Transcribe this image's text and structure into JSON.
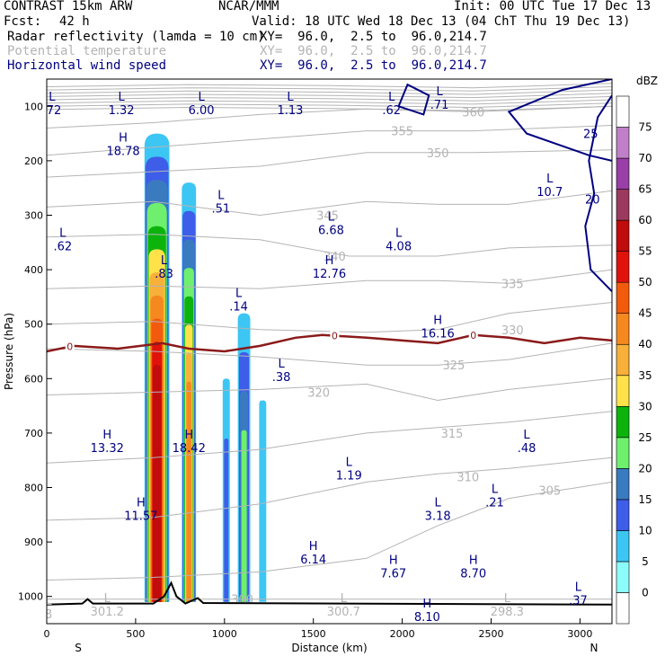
{
  "header": {
    "model": "CONTRAST 15km ARW",
    "org": "NCAR/MMM",
    "init": "Init: 00 UTC Tue 17 Dec 13",
    "fcst_label": "Fcst:",
    "fcst_value": "42 h",
    "valid": "Valid: 18 UTC Wed 18 Dec 13 (04 ChT Thu 19 Dec 13)",
    "fields": [
      {
        "name": "Radar reflectivity (lamda = 10 cm)",
        "xy": "XY=  96.0,  2.5 to  96.0,214.7",
        "color": "#000000"
      },
      {
        "name": "Potential temperature",
        "xy": "XY=  96.0,  2.5 to  96.0,214.7",
        "color": "#b4b4b4"
      },
      {
        "name": "Horizontal wind speed",
        "xy": "XY=  96.0,  2.5 to  96.0,214.7",
        "color": "#000080"
      }
    ]
  },
  "chart_data": {
    "type": "contour-cross-section",
    "xlabel": "Distance (km)",
    "ylabel": "Pressure (hPa)",
    "xlim": [
      0,
      3180
    ],
    "ylim": [
      1050,
      50
    ],
    "x_ticks": [
      0,
      500,
      1000,
      1500,
      2000,
      2500,
      3000
    ],
    "y_ticks": [
      100,
      200,
      300,
      400,
      500,
      600,
      700,
      800,
      900,
      1000
    ],
    "x_end_labels": {
      "left": "S",
      "right": "N"
    },
    "colorbar": {
      "unit": "dBZ",
      "levels": [
        0,
        5,
        10,
        15,
        20,
        25,
        30,
        35,
        40,
        45,
        50,
        55,
        60,
        65,
        70,
        75
      ],
      "colors": [
        "#ffffff",
        "#8efbfb",
        "#3cc6f4",
        "#3e5de8",
        "#3a7bbf",
        "#6ef06e",
        "#0cb30c",
        "#ffe24a",
        "#f7b03a",
        "#f5891f",
        "#f25a0c",
        "#e0120c",
        "#c00c0c",
        "#9a3a5c",
        "#9a3ea8",
        "#c080c8",
        "#ffffff"
      ]
    },
    "theta_contours": {
      "color": "#b4b4b4",
      "lines": [
        {
          "value": 300,
          "points": [
            [
              0,
              1005
            ],
            [
              3180,
              1005
            ]
          ],
          "label_at": [
            1100,
            1005
          ]
        },
        {
          "value": 305,
          "points": [
            [
              0,
              970
            ],
            [
              600,
              965
            ],
            [
              1200,
              955
            ],
            [
              1800,
              930
            ],
            [
              2200,
              870
            ],
            [
              2600,
              820
            ],
            [
              3180,
              790
            ]
          ],
          "label_at": [
            2830,
            805
          ]
        },
        {
          "value": 310,
          "points": [
            [
              0,
              860
            ],
            [
              600,
              855
            ],
            [
              1200,
              830
            ],
            [
              1800,
              790
            ],
            [
              2200,
              775
            ],
            [
              2600,
              765
            ],
            [
              3180,
              745
            ]
          ],
          "label_at": [
            2370,
            780
          ]
        },
        {
          "value": 315,
          "points": [
            [
              0,
              755
            ],
            [
              600,
              745
            ],
            [
              1200,
              730
            ],
            [
              1800,
              700
            ],
            [
              2200,
              690
            ],
            [
              2600,
              680
            ],
            [
              3180,
              660
            ]
          ],
          "label_at": [
            2280,
            700
          ]
        },
        {
          "value": 320,
          "points": [
            [
              0,
              630
            ],
            [
              600,
              625
            ],
            [
              1200,
              620
            ],
            [
              1800,
              610
            ],
            [
              2200,
              640
            ],
            [
              2600,
              620
            ],
            [
              3180,
              600
            ]
          ],
          "label_at": [
            1530,
            625
          ]
        },
        {
          "value": 325,
          "points": [
            [
              0,
              545
            ],
            [
              600,
              550
            ],
            [
              1200,
              560
            ],
            [
              1800,
              575
            ],
            [
              2200,
              575
            ],
            [
              2600,
              565
            ],
            [
              3180,
              535
            ]
          ],
          "label_at": [
            2290,
            575
          ]
        },
        {
          "value": 330,
          "points": [
            [
              0,
              500
            ],
            [
              600,
              495
            ],
            [
              1200,
              510
            ],
            [
              1800,
              515
            ],
            [
              2200,
              510
            ],
            [
              2600,
              480
            ],
            [
              3180,
              460
            ]
          ],
          "label_at": [
            2620,
            510
          ]
        },
        {
          "value": 335,
          "points": [
            [
              0,
              435
            ],
            [
              600,
              430
            ],
            [
              1200,
              435
            ],
            [
              1800,
              420
            ],
            [
              2200,
              420
            ],
            [
              2600,
              425
            ],
            [
              3180,
              400
            ]
          ],
          "label_at": [
            2620,
            425
          ]
        },
        {
          "value": 340,
          "points": [
            [
              0,
              340
            ],
            [
              600,
              335
            ],
            [
              1200,
              345
            ],
            [
              1700,
              375
            ],
            [
              2200,
              375
            ],
            [
              2600,
              360
            ],
            [
              3180,
              355
            ]
          ],
          "label_at": [
            1620,
            375
          ]
        },
        {
          "value": 345,
          "points": [
            [
              0,
              285
            ],
            [
              600,
              275
            ],
            [
              1200,
              300
            ],
            [
              1800,
              275
            ],
            [
              2200,
              280
            ],
            [
              2600,
              280
            ],
            [
              3180,
              255
            ]
          ],
          "label_at": [
            1580,
            300
          ]
        },
        {
          "value": 350,
          "points": [
            [
              0,
              230
            ],
            [
              600,
              220
            ],
            [
              1200,
              210
            ],
            [
              1800,
              185
            ],
            [
              2400,
              185
            ],
            [
              3180,
              180
            ]
          ],
          "label_at": [
            2200,
            185
          ]
        },
        {
          "value": 355,
          "points": [
            [
              0,
              190
            ],
            [
              600,
              175
            ],
            [
              1200,
              160
            ],
            [
              1800,
              145
            ],
            [
              2400,
              145
            ],
            [
              3180,
              135
            ]
          ],
          "label_at": [
            2000,
            145
          ]
        },
        {
          "value": 360,
          "points": [
            [
              0,
              140
            ],
            [
              600,
              130
            ],
            [
              1200,
              115
            ],
            [
              1800,
              105
            ],
            [
              2400,
              110
            ],
            [
              3180,
              100
            ]
          ],
          "label_at": [
            2400,
            110
          ]
        }
      ]
    },
    "wind_contours": {
      "color": "#000080",
      "lines": [
        {
          "value": 25,
          "points": [
            [
              3180,
              50
            ],
            [
              2900,
              70
            ],
            [
              2600,
              110
            ],
            [
              2700,
              150
            ],
            [
              3050,
              190
            ],
            [
              3180,
              200
            ]
          ],
          "label_at": [
            3060,
            150
          ]
        },
        {
          "value": 20,
          "points": [
            [
              3180,
              80
            ],
            [
              3100,
              120
            ],
            [
              3050,
              200
            ],
            [
              3080,
              260
            ],
            [
              3030,
              320
            ],
            [
              3060,
              400
            ],
            [
              3180,
              440
            ]
          ],
          "label_at": [
            3070,
            270
          ]
        },
        {
          "value": 0,
          "points": [
            [
              2030,
              60
            ],
            [
              1980,
              100
            ],
            [
              2120,
              115
            ],
            [
              2150,
              80
            ],
            [
              2030,
              60
            ]
          ],
          "label_at": null
        }
      ]
    },
    "freezing_level": {
      "color": "#8b1a1a",
      "label": "0",
      "points": [
        [
          0,
          550
        ],
        [
          150,
          540
        ],
        [
          400,
          545
        ],
        [
          650,
          535
        ],
        [
          800,
          545
        ],
        [
          1000,
          550
        ],
        [
          1200,
          540
        ],
        [
          1400,
          525
        ],
        [
          1550,
          520
        ],
        [
          1800,
          525
        ],
        [
          2000,
          530
        ],
        [
          2200,
          535
        ],
        [
          2400,
          520
        ],
        [
          2600,
          525
        ],
        [
          2800,
          535
        ],
        [
          3000,
          525
        ],
        [
          3180,
          530
        ]
      ],
      "label_positions": [
        130,
        1620,
        2400
      ]
    },
    "reflectivity_cells": [
      {
        "x_center": 620,
        "half_width": 70,
        "top_hpa": 150,
        "max_dbz": 55
      },
      {
        "x_center": 800,
        "half_width": 40,
        "top_hpa": 240,
        "max_dbz": 40
      },
      {
        "x_center": 1010,
        "half_width": 20,
        "top_hpa": 600,
        "max_dbz": 10
      },
      {
        "x_center": 1110,
        "half_width": 35,
        "top_hpa": 480,
        "max_dbz": 20
      },
      {
        "x_center": 1215,
        "half_width": 20,
        "top_hpa": 640,
        "max_dbz": 5
      }
    ],
    "terrain": {
      "color": "#000000",
      "points": [
        [
          0,
          1015
        ],
        [
          200,
          1013
        ],
        [
          230,
          1005
        ],
        [
          260,
          1013
        ],
        [
          600,
          1013
        ],
        [
          660,
          1000
        ],
        [
          700,
          975
        ],
        [
          730,
          1000
        ],
        [
          780,
          1013
        ],
        [
          850,
          1003
        ],
        [
          880,
          1012
        ],
        [
          3180,
          1015
        ]
      ]
    },
    "extrema_labels": [
      {
        "type": "L",
        "value": ".72",
        "x": 30,
        "y": 90
      },
      {
        "type": "L",
        "value": "1.32",
        "x": 420,
        "y": 90
      },
      {
        "type": "L",
        "value": "6.00",
        "x": 870,
        "y": 90
      },
      {
        "type": "L",
        "value": "1.13",
        "x": 1370,
        "y": 90
      },
      {
        "type": "L",
        "value": ".62",
        "x": 1940,
        "y": 90
      },
      {
        "type": "L",
        "value": ".71",
        "x": 2210,
        "y": 80
      },
      {
        "type": "H",
        "value": "18.78",
        "x": 430,
        "y": 165
      },
      {
        "type": "L",
        "value": ".51",
        "x": 980,
        "y": 270
      },
      {
        "type": "L",
        "value": "10.7",
        "x": 2830,
        "y": 240
      },
      {
        "type": "L",
        "value": ".62",
        "x": 90,
        "y": 340
      },
      {
        "type": "L",
        "value": "6.68",
        "x": 1600,
        "y": 310
      },
      {
        "type": "L",
        "value": "4.08",
        "x": 1980,
        "y": 340
      },
      {
        "type": "H",
        "value": "12.76",
        "x": 1590,
        "y": 390
      },
      {
        "type": "L",
        "value": ".83",
        "x": 660,
        "y": 390
      },
      {
        "type": "L",
        "value": ".14",
        "x": 1080,
        "y": 450
      },
      {
        "type": "H",
        "value": "16.16",
        "x": 2200,
        "y": 500
      },
      {
        "type": "L",
        "value": ".38",
        "x": 1320,
        "y": 580
      },
      {
        "type": "H",
        "value": "13.32",
        "x": 340,
        "y": 710
      },
      {
        "type": "H",
        "value": "18.42",
        "x": 800,
        "y": 710
      },
      {
        "type": "L",
        "value": ".48",
        "x": 2700,
        "y": 710
      },
      {
        "type": "L",
        "value": "1.19",
        "x": 1700,
        "y": 760
      },
      {
        "type": "L",
        "value": ".21",
        "x": 2520,
        "y": 810
      },
      {
        "type": "H",
        "value": "11.57",
        "x": 530,
        "y": 835
      },
      {
        "type": "L",
        "value": "3.18",
        "x": 2200,
        "y": 835
      },
      {
        "type": "H",
        "value": "6.14",
        "x": 1500,
        "y": 915
      },
      {
        "type": "H",
        "value": "7.67",
        "x": 1950,
        "y": 940
      },
      {
        "type": "H",
        "value": "8.70",
        "x": 2400,
        "y": 940
      },
      {
        "type": "L",
        "value": ".37",
        "x": 2990,
        "y": 990
      },
      {
        "type": "H",
        "value": "8.10",
        "x": 2140,
        "y": 1020
      }
    ],
    "theta_extrema_labels": [
      {
        "type": "L",
        "value": "301.2",
        "x": 330,
        "y": 1030
      },
      {
        "type": "L",
        "value": "300.7",
        "x": 1660,
        "y": 1030
      },
      {
        "type": "L",
        "value": "298.3",
        "x": 2580,
        "y": 1030
      },
      {
        "type": "L",
        "value": "8",
        "x": 0,
        "y": 1035
      }
    ]
  }
}
